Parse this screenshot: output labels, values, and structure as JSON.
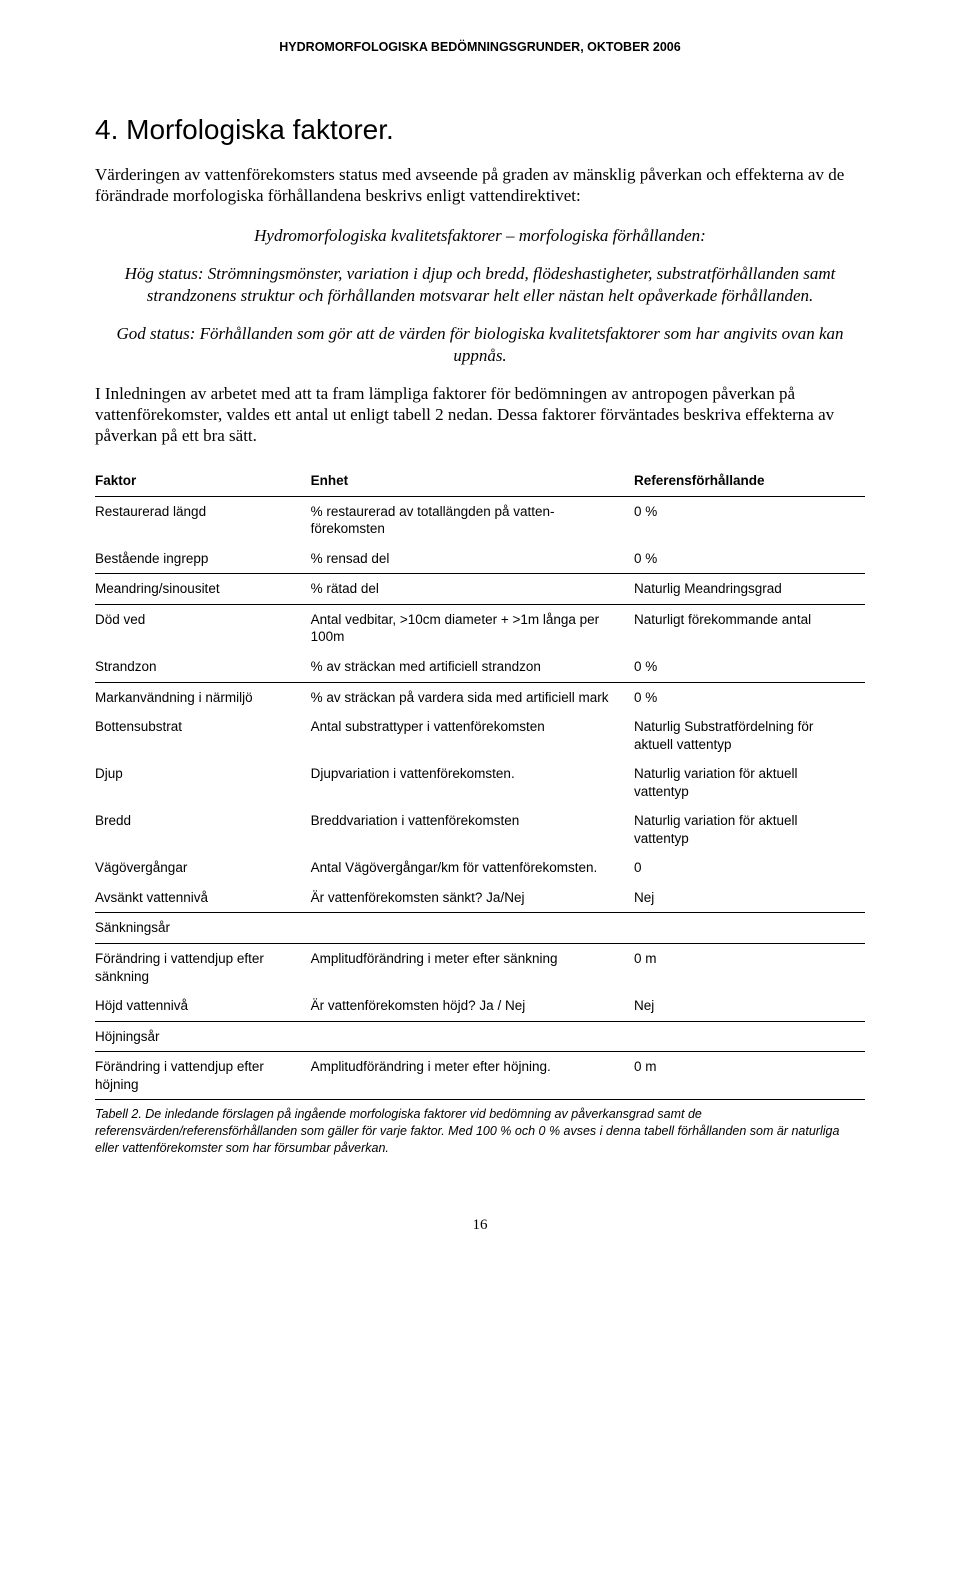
{
  "header": "HYDROMORFOLOGISKA BEDÖMNINGSGRUNDER, OKTOBER 2006",
  "title": "4. Morfologiska faktorer.",
  "intro": "Värderingen av vattenförekomsters status med avseende på graden av mänsklig påverkan och effekterna av de förändrade morfologiska förhållandena beskrivs enligt vattendirektivet:",
  "quote_lead": "Hydromorfologiska kvalitetsfaktorer – morfologiska förhållanden:",
  "quote_hog": "Hög status: Strömningsmönster, variation i djup och bredd, flödeshastigheter, substratförhållanden samt strandzonens struktur och förhållanden motsvarar helt eller nästan helt opåverkade förhållanden.",
  "quote_god": "God status: Förhållanden som gör att de värden för biologiska kvalitetsfaktorer som har angivits ovan kan uppnås.",
  "para2": "I Inledningen av arbetet med att ta fram lämpliga faktorer för bedömningen av antropogen påverkan på vattenförekomster, valdes ett antal ut enligt tabell 2 nedan. Dessa faktorer förväntades beskriva effekterna av påverkan på ett bra sätt.",
  "table": {
    "headers": [
      "Faktor",
      "Enhet",
      "Referensförhållande"
    ],
    "rows": [
      {
        "f": "Restaurerad längd",
        "e": "% restaurerad av totallängden på vatten­förekomsten",
        "r": "0 %",
        "noborder": true
      },
      {
        "f": "Bestående ingrepp",
        "e": "% rensad del",
        "r": "0 %"
      },
      {
        "f": "Meandring/sinousitet",
        "e": "% rätad del",
        "r": "Naturlig Meandringsgrad"
      },
      {
        "f": "Död ved",
        "e": "Antal vedbitar, >10cm diameter + >1m långa per 100m",
        "r": "Naturligt förekommande antal",
        "noborder": true
      },
      {
        "f": "Strandzon",
        "e": "% av sträckan med artificiell strandzon",
        "r": "0 %"
      },
      {
        "f": "Markanvändning i närmiljö",
        "e": "% av sträckan på vardera sida med artificiell mark",
        "r": "0 %",
        "noborder": true
      },
      {
        "f": "Bottensubstrat",
        "e": "Antal substrattyper i vattenförekomsten",
        "r": "Naturlig Substratfördelning för aktuell vattentyp",
        "noborder": true
      },
      {
        "f": "Djup",
        "e": "Djupvariation i vattenförekomsten.",
        "r": "Naturlig variation för aktuell vattentyp",
        "noborder": true
      },
      {
        "f": "Bredd",
        "e": "Breddvariation i vattenförekomsten",
        "r": "Naturlig variation för aktuell vattentyp",
        "noborder": true
      },
      {
        "f": "Vägövergångar",
        "e": "Antal Vägövergångar/km för vattenförekomsten.",
        "r": "0",
        "noborder": true
      },
      {
        "f": "Avsänkt vattennivå",
        "e": "Är vattenförekomsten sänkt? Ja/Nej",
        "r": "Nej"
      },
      {
        "f": "Sänkningsår",
        "e": "",
        "r": ""
      },
      {
        "f": "Förändring i vattendjup efter sänkning",
        "e": "Amplitudförändring i meter efter sänkning",
        "r": "0 m",
        "noborder": true
      },
      {
        "f": "Höjd vattennivå",
        "e": "Är vattenförekomsten höjd? Ja / Nej",
        "r": "Nej"
      },
      {
        "f": "Höjningsår",
        "e": "",
        "r": ""
      },
      {
        "f": "Förändring i vattendjup efter höjning",
        "e": "Amplitudförändring i meter efter höjning.",
        "r": "0 m"
      }
    ]
  },
  "caption": "Tabell 2. De inledande förslagen på ingående morfologiska faktorer vid bedömning av påverkansgrad samt de referensvärden/referensförhållanden som gäller för varje faktor. Med 100 % och 0 % avses i denna tabell förhållanden som är naturliga eller vattenförekomster som har försumbar påverkan.",
  "page_number": "16"
}
